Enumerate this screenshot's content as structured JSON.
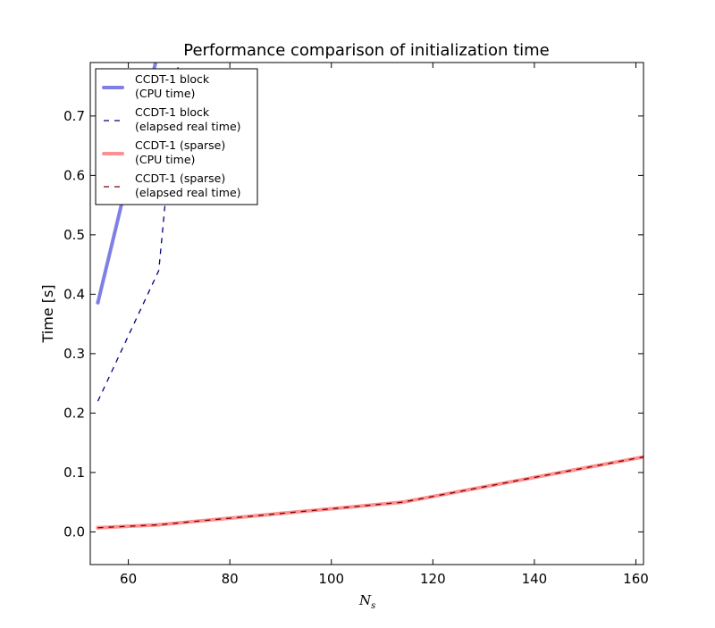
{
  "chart_data": {
    "type": "line",
    "title": "Performance comparison of initialization time",
    "xlabel_main": "N",
    "xlabel_sub": "s",
    "ylabel": "Time [s]",
    "xlim": [
      52.5,
      161.5
    ],
    "ylim": [
      -0.055,
      0.79
    ],
    "xticks": [
      60,
      80,
      100,
      120,
      140,
      160
    ],
    "yticks": [
      0.0,
      0.1,
      0.2,
      0.3,
      0.4,
      0.5,
      0.6,
      0.7
    ],
    "ytick_labels": [
      "0.0",
      "0.1",
      "0.2",
      "0.3",
      "0.4",
      "0.5",
      "0.6",
      "0.7"
    ],
    "grid": false,
    "legend_position": "top-left",
    "series": [
      {
        "name": "CCDT-1 block",
        "name_line2": "(CPU time)",
        "color": "#7f7fe6",
        "style": "solid-thick",
        "x": [
          54,
          66.5
        ],
        "y": [
          0.386,
          0.83
        ]
      },
      {
        "name": "CCDT-1 block",
        "name_line2": "(elapsed real time)",
        "color": "#00007f",
        "style": "dashed",
        "x": [
          54,
          66,
          70
        ],
        "y": [
          0.22,
          0.44,
          0.8
        ]
      },
      {
        "name": "CCDT-1 (sparse)",
        "name_line2": "(CPU time)",
        "color": "#ff9090",
        "style": "solid-thick",
        "x": [
          54,
          66,
          90,
          114,
          162
        ],
        "y": [
          0.007,
          0.012,
          0.031,
          0.05,
          0.127
        ]
      },
      {
        "name": "CCDT-1 (sparse)",
        "name_line2": "(elapsed real time)",
        "color": "#7f0000",
        "style": "dashed",
        "x": [
          54,
          66,
          90,
          114,
          162
        ],
        "y": [
          0.007,
          0.012,
          0.031,
          0.05,
          0.127
        ]
      }
    ]
  }
}
